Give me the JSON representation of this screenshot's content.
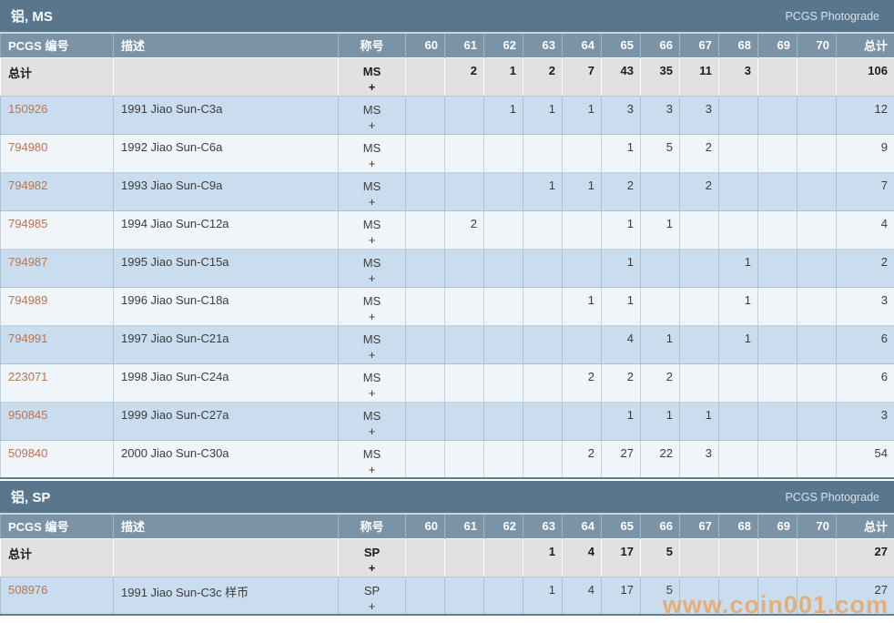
{
  "columns": {
    "pcgs_no": "PCGS 编号",
    "description": "描述",
    "designation": "称号",
    "grades": [
      "60",
      "61",
      "62",
      "63",
      "64",
      "65",
      "66",
      "67",
      "68",
      "69",
      "70"
    ],
    "total": "总计"
  },
  "watermark": "www.coin001.com",
  "colors": {
    "section_bar": "#5a768d",
    "header_row": "#7b93a7",
    "row_blue": "#c9ddee",
    "row_light": "#f0f5fa",
    "total_row_bg": "#e1e1df",
    "link": "#b97450",
    "watermark": "#eda35c"
  },
  "sections": [
    {
      "title": "铝, MS",
      "photograde_label": "PCGS Photograde",
      "total_row": {
        "label": "总计",
        "designation": "MS",
        "plus": "+",
        "grades": [
          "",
          "2",
          "1",
          "2",
          "7",
          "43",
          "35",
          "11",
          "3",
          "",
          ""
        ],
        "total": "106"
      },
      "rows": [
        {
          "pcgs_no": "150926",
          "description": "1991 Jiao Sun-C3a",
          "designation": "MS",
          "plus": "+",
          "grades": [
            "",
            "",
            "1",
            "1",
            "1",
            "3",
            "3",
            "3",
            "",
            "",
            ""
          ],
          "total": "12"
        },
        {
          "pcgs_no": "794980",
          "description": "1992 Jiao Sun-C6a",
          "designation": "MS",
          "plus": "+",
          "grades": [
            "",
            "",
            "",
            "",
            "",
            "1",
            "5",
            "2",
            "",
            "",
            ""
          ],
          "total": "9"
        },
        {
          "pcgs_no": "794982",
          "description": "1993 Jiao Sun-C9a",
          "designation": "MS",
          "plus": "+",
          "grades": [
            "",
            "",
            "",
            "1",
            "1",
            "2",
            "",
            "2",
            "",
            "",
            ""
          ],
          "total": "7"
        },
        {
          "pcgs_no": "794985",
          "description": "1994 Jiao Sun-C12a",
          "designation": "MS",
          "plus": "+",
          "grades": [
            "",
            "2",
            "",
            "",
            "",
            "1",
            "1",
            "",
            "",
            "",
            ""
          ],
          "total": "4"
        },
        {
          "pcgs_no": "794987",
          "description": "1995 Jiao Sun-C15a",
          "designation": "MS",
          "plus": "+",
          "grades": [
            "",
            "",
            "",
            "",
            "",
            "1",
            "",
            "",
            "1",
            "",
            ""
          ],
          "total": "2"
        },
        {
          "pcgs_no": "794989",
          "description": "1996 Jiao Sun-C18a",
          "designation": "MS",
          "plus": "+",
          "grades": [
            "",
            "",
            "",
            "",
            "1",
            "1",
            "",
            "",
            "1",
            "",
            ""
          ],
          "total": "3"
        },
        {
          "pcgs_no": "794991",
          "description": "1997 Jiao Sun-C21a",
          "designation": "MS",
          "plus": "+",
          "grades": [
            "",
            "",
            "",
            "",
            "",
            "4",
            "1",
            "",
            "1",
            "",
            ""
          ],
          "total": "6"
        },
        {
          "pcgs_no": "223071",
          "description": "1998 Jiao Sun-C24a",
          "designation": "MS",
          "plus": "+",
          "grades": [
            "",
            "",
            "",
            "",
            "2",
            "2",
            "2",
            "",
            "",
            "",
            ""
          ],
          "total": "6"
        },
        {
          "pcgs_no": "950845",
          "description": "1999 Jiao Sun-C27a",
          "designation": "MS",
          "plus": "+",
          "grades": [
            "",
            "",
            "",
            "",
            "",
            "1",
            "1",
            "1",
            "",
            "",
            ""
          ],
          "total": "3"
        },
        {
          "pcgs_no": "509840",
          "description": "2000 Jiao Sun-C30a",
          "designation": "MS",
          "plus": "+",
          "grades": [
            "",
            "",
            "",
            "",
            "2",
            "27",
            "22",
            "3",
            "",
            "",
            ""
          ],
          "total": "54"
        }
      ]
    },
    {
      "title": "铝, SP",
      "photograde_label": "PCGS Photograde",
      "total_row": {
        "label": "总计",
        "designation": "SP",
        "plus": "+",
        "grades": [
          "",
          "",
          "",
          "1",
          "4",
          "17",
          "5",
          "",
          "",
          "",
          ""
        ],
        "total": "27"
      },
      "rows": [
        {
          "pcgs_no": "508976",
          "description": "1991 Jiao Sun-C3c 样币",
          "designation": "SP",
          "plus": "+",
          "grades": [
            "",
            "",
            "",
            "1",
            "4",
            "17",
            "5",
            "",
            "",
            "",
            ""
          ],
          "total": "27"
        }
      ]
    }
  ]
}
